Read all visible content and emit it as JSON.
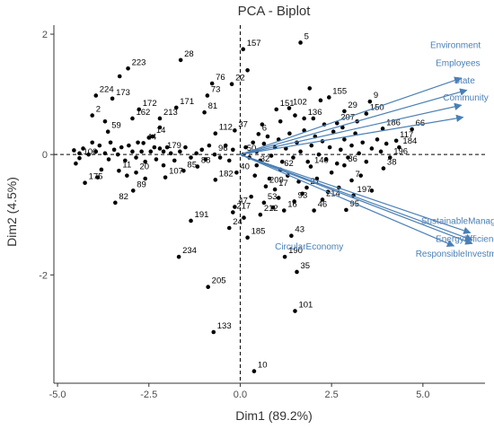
{
  "chart_data": {
    "type": "scatter",
    "title": "PCA - Biplot",
    "xlabel": "Dim1 (89.2%)",
    "ylabel": "Dim2 (4.5%)",
    "xlim": [
      -5.1,
      6.7
    ],
    "ylim": [
      -3.8,
      2.15
    ],
    "x_ticks": [
      -5,
      -2.5,
      0,
      2.5,
      5
    ],
    "x_tick_labels": [
      "-5.0",
      "-2.5",
      "0.0",
      "2.5",
      "5.0"
    ],
    "y_ticks": [
      -2,
      0,
      2
    ],
    "y_tick_labels": [
      "-2",
      "0",
      "2"
    ],
    "grid": false,
    "reference_lines": {
      "x": 0,
      "y": 0
    },
    "colors": {
      "points": "#000000",
      "vectors": "#4a7fb5",
      "axes": "#333333"
    },
    "labeled_points": [
      {
        "id": "5",
        "x": 1.65,
        "y": 1.86
      },
      {
        "id": "157",
        "x": 0.08,
        "y": 1.75
      },
      {
        "id": "223",
        "x": -3.07,
        "y": 1.43
      },
      {
        "id": "28",
        "x": -1.63,
        "y": 1.57
      },
      {
        "id": "76",
        "x": -0.77,
        "y": 1.18
      },
      {
        "id": "22",
        "x": -0.23,
        "y": 1.17
      },
      {
        "id": "224",
        "x": -3.95,
        "y": 0.98
      },
      {
        "id": "173",
        "x": -3.5,
        "y": 0.93
      },
      {
        "id": "73",
        "x": -0.9,
        "y": 0.98
      },
      {
        "id": "172",
        "x": -2.77,
        "y": 0.75
      },
      {
        "id": "171",
        "x": -1.75,
        "y": 0.78
      },
      {
        "id": "155",
        "x": 2.43,
        "y": 0.95
      },
      {
        "id": "151",
        "x": 0.99,
        "y": 0.75
      },
      {
        "id": "102",
        "x": 1.34,
        "y": 0.77
      },
      {
        "id": "9",
        "x": 3.55,
        "y": 0.88
      },
      {
        "id": "29",
        "x": 2.85,
        "y": 0.72
      },
      {
        "id": "2",
        "x": -4.05,
        "y": 0.65
      },
      {
        "id": "162",
        "x": -2.95,
        "y": 0.6
      },
      {
        "id": "213",
        "x": -2.2,
        "y": 0.6
      },
      {
        "id": "81",
        "x": -0.98,
        "y": 0.7
      },
      {
        "id": "136",
        "x": 1.75,
        "y": 0.6
      },
      {
        "id": "150",
        "x": 3.45,
        "y": 0.68
      },
      {
        "id": "207",
        "x": 2.65,
        "y": 0.52
      },
      {
        "id": "59",
        "x": -3.62,
        "y": 0.38
      },
      {
        "id": "112",
        "x": -0.68,
        "y": 0.35
      },
      {
        "id": "37",
        "x": -0.15,
        "y": 0.4
      },
      {
        "id": "6",
        "x": 0.5,
        "y": 0.34
      },
      {
        "id": "186",
        "x": 3.9,
        "y": 0.43
      },
      {
        "id": "66",
        "x": 4.7,
        "y": 0.42
      },
      {
        "id": "14",
        "x": -2.4,
        "y": 0.3
      },
      {
        "id": "44",
        "x": -2.65,
        "y": 0.19
      },
      {
        "id": "117",
        "x": 4.27,
        "y": 0.23
      },
      {
        "id": "184",
        "x": 4.35,
        "y": 0.12
      },
      {
        "id": "179",
        "x": -2.1,
        "y": 0.05
      },
      {
        "id": "96",
        "x": -0.7,
        "y": 0.0
      },
      {
        "id": "50",
        "x": 0.08,
        "y": 0.0
      },
      {
        "id": "196",
        "x": 4.1,
        "y": -0.05
      },
      {
        "id": "100",
        "x": -4.4,
        "y": -0.06
      },
      {
        "id": "175",
        "x": -4.25,
        "y": -0.47
      },
      {
        "id": "11",
        "x": -3.32,
        "y": -0.27
      },
      {
        "id": "20",
        "x": -2.85,
        "y": -0.3
      },
      {
        "id": "89",
        "x": -2.93,
        "y": -0.6
      },
      {
        "id": "82",
        "x": -3.42,
        "y": -0.8
      },
      {
        "id": "107",
        "x": -2.05,
        "y": -0.38
      },
      {
        "id": "85",
        "x": -1.55,
        "y": -0.27
      },
      {
        "id": "88",
        "x": -1.17,
        "y": -0.2
      },
      {
        "id": "182",
        "x": -0.68,
        "y": -0.42
      },
      {
        "id": "40",
        "x": -0.1,
        "y": -0.3
      },
      {
        "id": "32",
        "x": 0.45,
        "y": -0.18
      },
      {
        "id": "62",
        "x": 1.1,
        "y": -0.25
      },
      {
        "id": "140",
        "x": 1.93,
        "y": -0.2
      },
      {
        "id": "38",
        "x": 3.92,
        "y": -0.23
      },
      {
        "id": "7",
        "x": 3.05,
        "y": -0.43
      },
      {
        "id": "36",
        "x": 2.85,
        "y": -0.18
      },
      {
        "id": "209",
        "x": 0.7,
        "y": -0.53
      },
      {
        "id": "17",
        "x": 0.95,
        "y": -0.58
      },
      {
        "id": "21",
        "x": 1.82,
        "y": -0.55
      },
      {
        "id": "197",
        "x": 3.1,
        "y": -0.68
      },
      {
        "id": "53",
        "x": 0.65,
        "y": -0.8
      },
      {
        "id": "93",
        "x": 1.48,
        "y": -0.78
      },
      {
        "id": "214",
        "x": 2.25,
        "y": -0.75
      },
      {
        "id": "47",
        "x": -0.15,
        "y": -0.87
      },
      {
        "id": "217",
        "x": -0.2,
        "y": -0.96
      },
      {
        "id": "16",
        "x": 1.2,
        "y": -0.93
      },
      {
        "id": "46",
        "x": 2.02,
        "y": -0.93
      },
      {
        "id": "95",
        "x": 2.9,
        "y": -0.92
      },
      {
        "id": "191",
        "x": -1.35,
        "y": -1.1
      },
      {
        "id": "212",
        "x": 0.55,
        "y": -1.0
      },
      {
        "id": "24",
        "x": -0.3,
        "y": -1.22
      },
      {
        "id": "185",
        "x": 0.2,
        "y": -1.38
      },
      {
        "id": "43",
        "x": 1.4,
        "y": -1.35
      },
      {
        "id": "190",
        "x": 1.22,
        "y": -1.7
      },
      {
        "id": "234",
        "x": -1.68,
        "y": -1.7
      },
      {
        "id": "35",
        "x": 1.55,
        "y": -1.95
      },
      {
        "id": "205",
        "x": -0.88,
        "y": -2.2
      },
      {
        "id": "101",
        "x": 1.5,
        "y": -2.6
      },
      {
        "id": "133",
        "x": -0.73,
        "y": -2.95
      },
      {
        "id": "10",
        "x": 0.38,
        "y": -3.6
      }
    ],
    "unlabeled_points": [
      [
        -4.55,
        0.07
      ],
      [
        -4.4,
        0.02
      ],
      [
        -4.3,
        0.1
      ],
      [
        -4.15,
        0.0
      ],
      [
        -4.05,
        0.2
      ],
      [
        -3.95,
        0.05
      ],
      [
        -3.85,
        0.15
      ],
      [
        -3.7,
        0.02
      ],
      [
        -3.6,
        -0.08
      ],
      [
        -3.55,
        0.2
      ],
      [
        -3.45,
        0.08
      ],
      [
        -3.35,
        0.0
      ],
      [
        -3.25,
        0.12
      ],
      [
        -3.15,
        -0.1
      ],
      [
        -3.05,
        0.15
      ],
      [
        -2.95,
        0.05
      ],
      [
        -2.85,
        -0.05
      ],
      [
        -2.8,
        0.2
      ],
      [
        -2.7,
        0.05
      ],
      [
        -2.6,
        -0.12
      ],
      [
        -2.5,
        0.28
      ],
      [
        -2.45,
        0.05
      ],
      [
        -2.35,
        0.12
      ],
      [
        -2.3,
        -0.08
      ],
      [
        -2.2,
        0.1
      ],
      [
        -2.1,
        -0.18
      ],
      [
        -2.0,
        0.12
      ],
      [
        -1.9,
        0.02
      ],
      [
        -1.8,
        -0.1
      ],
      [
        -1.65,
        0.05
      ],
      [
        -1.5,
        0.12
      ],
      [
        -1.35,
        -0.05
      ],
      [
        -1.2,
        0.02
      ],
      [
        -1.05,
        0.08
      ],
      [
        -0.95,
        -0.08
      ],
      [
        -0.85,
        0.15
      ],
      [
        -0.55,
        -0.05
      ],
      [
        -0.4,
        0.15
      ],
      [
        -0.3,
        -0.1
      ],
      [
        -0.2,
        0.08
      ],
      [
        -3.8,
        -0.25
      ],
      [
        -3.1,
        -0.35
      ],
      [
        -2.6,
        -0.4
      ],
      [
        -4.5,
        -0.15
      ],
      [
        -3.9,
        -0.38
      ],
      [
        -3.3,
        1.3
      ],
      [
        -2.2,
        0.45
      ],
      [
        -3.7,
        0.55
      ],
      [
        0.15,
        0.12
      ],
      [
        0.25,
        -0.05
      ],
      [
        0.35,
        0.2
      ],
      [
        0.45,
        0.05
      ],
      [
        0.55,
        -0.1
      ],
      [
        0.65,
        0.18
      ],
      [
        0.75,
        0.3
      ],
      [
        0.85,
        -0.02
      ],
      [
        0.95,
        0.12
      ],
      [
        1.05,
        0.25
      ],
      [
        1.15,
        -0.12
      ],
      [
        1.25,
        0.1
      ],
      [
        1.35,
        0.35
      ],
      [
        1.45,
        -0.05
      ],
      [
        1.55,
        0.2
      ],
      [
        1.65,
        0.05
      ],
      [
        1.75,
        0.4
      ],
      [
        1.85,
        -0.12
      ],
      [
        1.95,
        0.15
      ],
      [
        2.05,
        0.3
      ],
      [
        2.15,
        0.0
      ],
      [
        2.25,
        0.22
      ],
      [
        2.35,
        -0.08
      ],
      [
        2.45,
        0.12
      ],
      [
        2.55,
        0.38
      ],
      [
        2.65,
        -0.15
      ],
      [
        2.75,
        0.08
      ],
      [
        2.85,
        0.25
      ],
      [
        2.95,
        -0.05
      ],
      [
        3.05,
        0.15
      ],
      [
        3.15,
        0.35
      ],
      [
        3.25,
        0.02
      ],
      [
        3.35,
        0.2
      ],
      [
        3.45,
        -0.12
      ],
      [
        3.6,
        0.1
      ],
      [
        3.75,
        0.25
      ],
      [
        3.85,
        0.05
      ],
      [
        4.0,
        0.18
      ],
      [
        0.6,
        0.5
      ],
      [
        1.1,
        0.55
      ],
      [
        1.5,
        0.65
      ],
      [
        2.0,
        0.6
      ],
      [
        2.3,
        0.5
      ],
      [
        2.8,
        0.45
      ],
      [
        3.2,
        0.55
      ],
      [
        0.4,
        -0.35
      ],
      [
        0.8,
        -0.4
      ],
      [
        1.3,
        -0.35
      ],
      [
        1.6,
        -0.45
      ],
      [
        2.1,
        -0.4
      ],
      [
        2.5,
        -0.3
      ],
      [
        2.7,
        -0.55
      ],
      [
        3.3,
        -0.35
      ],
      [
        3.6,
        -0.6
      ],
      [
        1.05,
        -0.72
      ],
      [
        1.7,
        -0.65
      ],
      [
        2.4,
        -0.62
      ],
      [
        0.3,
        -0.7
      ],
      [
        0.9,
        -0.88
      ],
      [
        0.1,
        -1.05
      ],
      [
        1.9,
        1.1
      ],
      [
        2.2,
        0.9
      ],
      [
        0.2,
        1.4
      ]
    ],
    "variables": [
      {
        "name": "Environment",
        "x": 6.05,
        "y": 1.27
      },
      {
        "name": "Employees",
        "x": 6.2,
        "y": 1.07
      },
      {
        "name": "State",
        "x": 6.05,
        "y": 0.82
      },
      {
        "name": "Community",
        "x": 6.1,
        "y": 0.62
      },
      {
        "name": "SustainableManagement",
        "x": 6.3,
        "y": -1.3
      },
      {
        "name": "EnergyEfficiency",
        "x": 6.35,
        "y": -1.42
      },
      {
        "name": "ResponsibleInvestments",
        "x": 6.35,
        "y": -1.48
      },
      {
        "name": "CircularEconomy",
        "x": 5.85,
        "y": -1.52
      }
    ],
    "variable_label_positions": [
      {
        "name": "Environment",
        "x": 5.2,
        "y": 1.77
      },
      {
        "name": "Employees",
        "x": 5.35,
        "y": 1.47
      },
      {
        "name": "State",
        "x": 5.85,
        "y": 1.18
      },
      {
        "name": "Community",
        "x": 5.55,
        "y": 0.9
      },
      {
        "name": "SustainableManagement",
        "x": 4.95,
        "y": -1.15
      },
      {
        "name": "EnergyEfficiency",
        "x": 5.35,
        "y": -1.45
      },
      {
        "name": "ResponsibleInvestments",
        "x": 4.8,
        "y": -1.7
      },
      {
        "name": "CircularEconomy",
        "x": 0.95,
        "y": -1.58
      }
    ]
  }
}
